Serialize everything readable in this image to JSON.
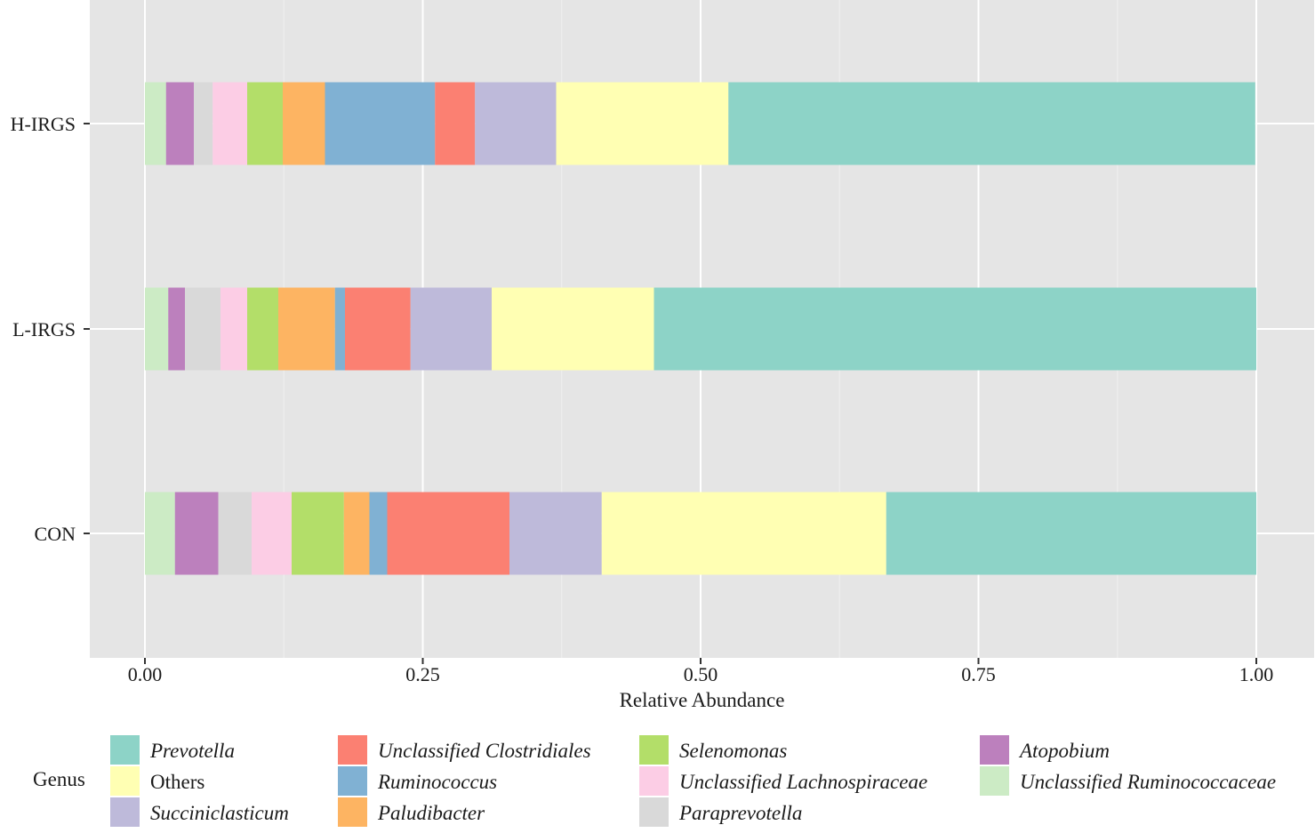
{
  "chart_data": {
    "type": "bar",
    "orientation": "horizontal",
    "stacked": true,
    "categories": [
      "CON",
      "L-IRGS",
      "H-IRGS"
    ],
    "xlabel": "Relative Abundance",
    "ylabel": "",
    "xlim": [
      0,
      1
    ],
    "xticks": [
      "0.00",
      "0.25",
      "0.50",
      "0.75",
      "1.00"
    ],
    "grid": true,
    "legend": {
      "title": "Genus",
      "placement": "bottom"
    },
    "series": [
      {
        "name": "Unclassified Ruminococcaceae",
        "italic": true,
        "color": "#CCEBC5",
        "values": [
          0.027,
          0.021,
          0.019
        ]
      },
      {
        "name": "Atopobium",
        "italic": true,
        "color": "#BC80BD",
        "values": [
          0.039,
          0.015,
          0.025
        ]
      },
      {
        "name": "Paraprevotella",
        "italic": true,
        "color": "#D9D9D9",
        "values": [
          0.03,
          0.032,
          0.017
        ]
      },
      {
        "name": "Unclassified Lachnospiraceae",
        "italic": true,
        "color": "#FCCDE5",
        "values": [
          0.036,
          0.024,
          0.031
        ]
      },
      {
        "name": "Selenomonas",
        "italic": true,
        "color": "#B3DE69",
        "values": [
          0.047,
          0.028,
          0.032
        ]
      },
      {
        "name": "Paludibacter",
        "italic": true,
        "color": "#FDB462",
        "values": [
          0.023,
          0.051,
          0.038
        ]
      },
      {
        "name": "Ruminococcus",
        "italic": true,
        "color": "#80B1D3",
        "values": [
          0.016,
          0.009,
          0.099
        ]
      },
      {
        "name": "Unclassified Clostridiales",
        "italic": true,
        "color": "#FB8072",
        "values": [
          0.11,
          0.059,
          0.036
        ]
      },
      {
        "name": "Succiniclasticum",
        "italic": true,
        "color": "#BEBADA",
        "values": [
          0.083,
          0.073,
          0.073
        ]
      },
      {
        "name": "Others",
        "italic": false,
        "color": "#FFFFB3",
        "values": [
          0.256,
          0.146,
          0.155
        ]
      },
      {
        "name": "Prevotella",
        "italic": true,
        "color": "#8DD3C7",
        "values": [
          0.333,
          0.542,
          0.474
        ]
      }
    ],
    "legend_order": [
      "Prevotella",
      "Others",
      "Succiniclasticum",
      "Unclassified Clostridiales",
      "Ruminococcus",
      "Paludibacter",
      "Selenomonas",
      "Unclassified Lachnospiraceae",
      "Paraprevotella",
      "Atopobium",
      "Unclassified Ruminococcaceae"
    ]
  },
  "colors": {
    "panel_background": "#E5E5E5",
    "grid_major": "#FFFFFF",
    "grid_minor": "#F0F0F0"
  }
}
